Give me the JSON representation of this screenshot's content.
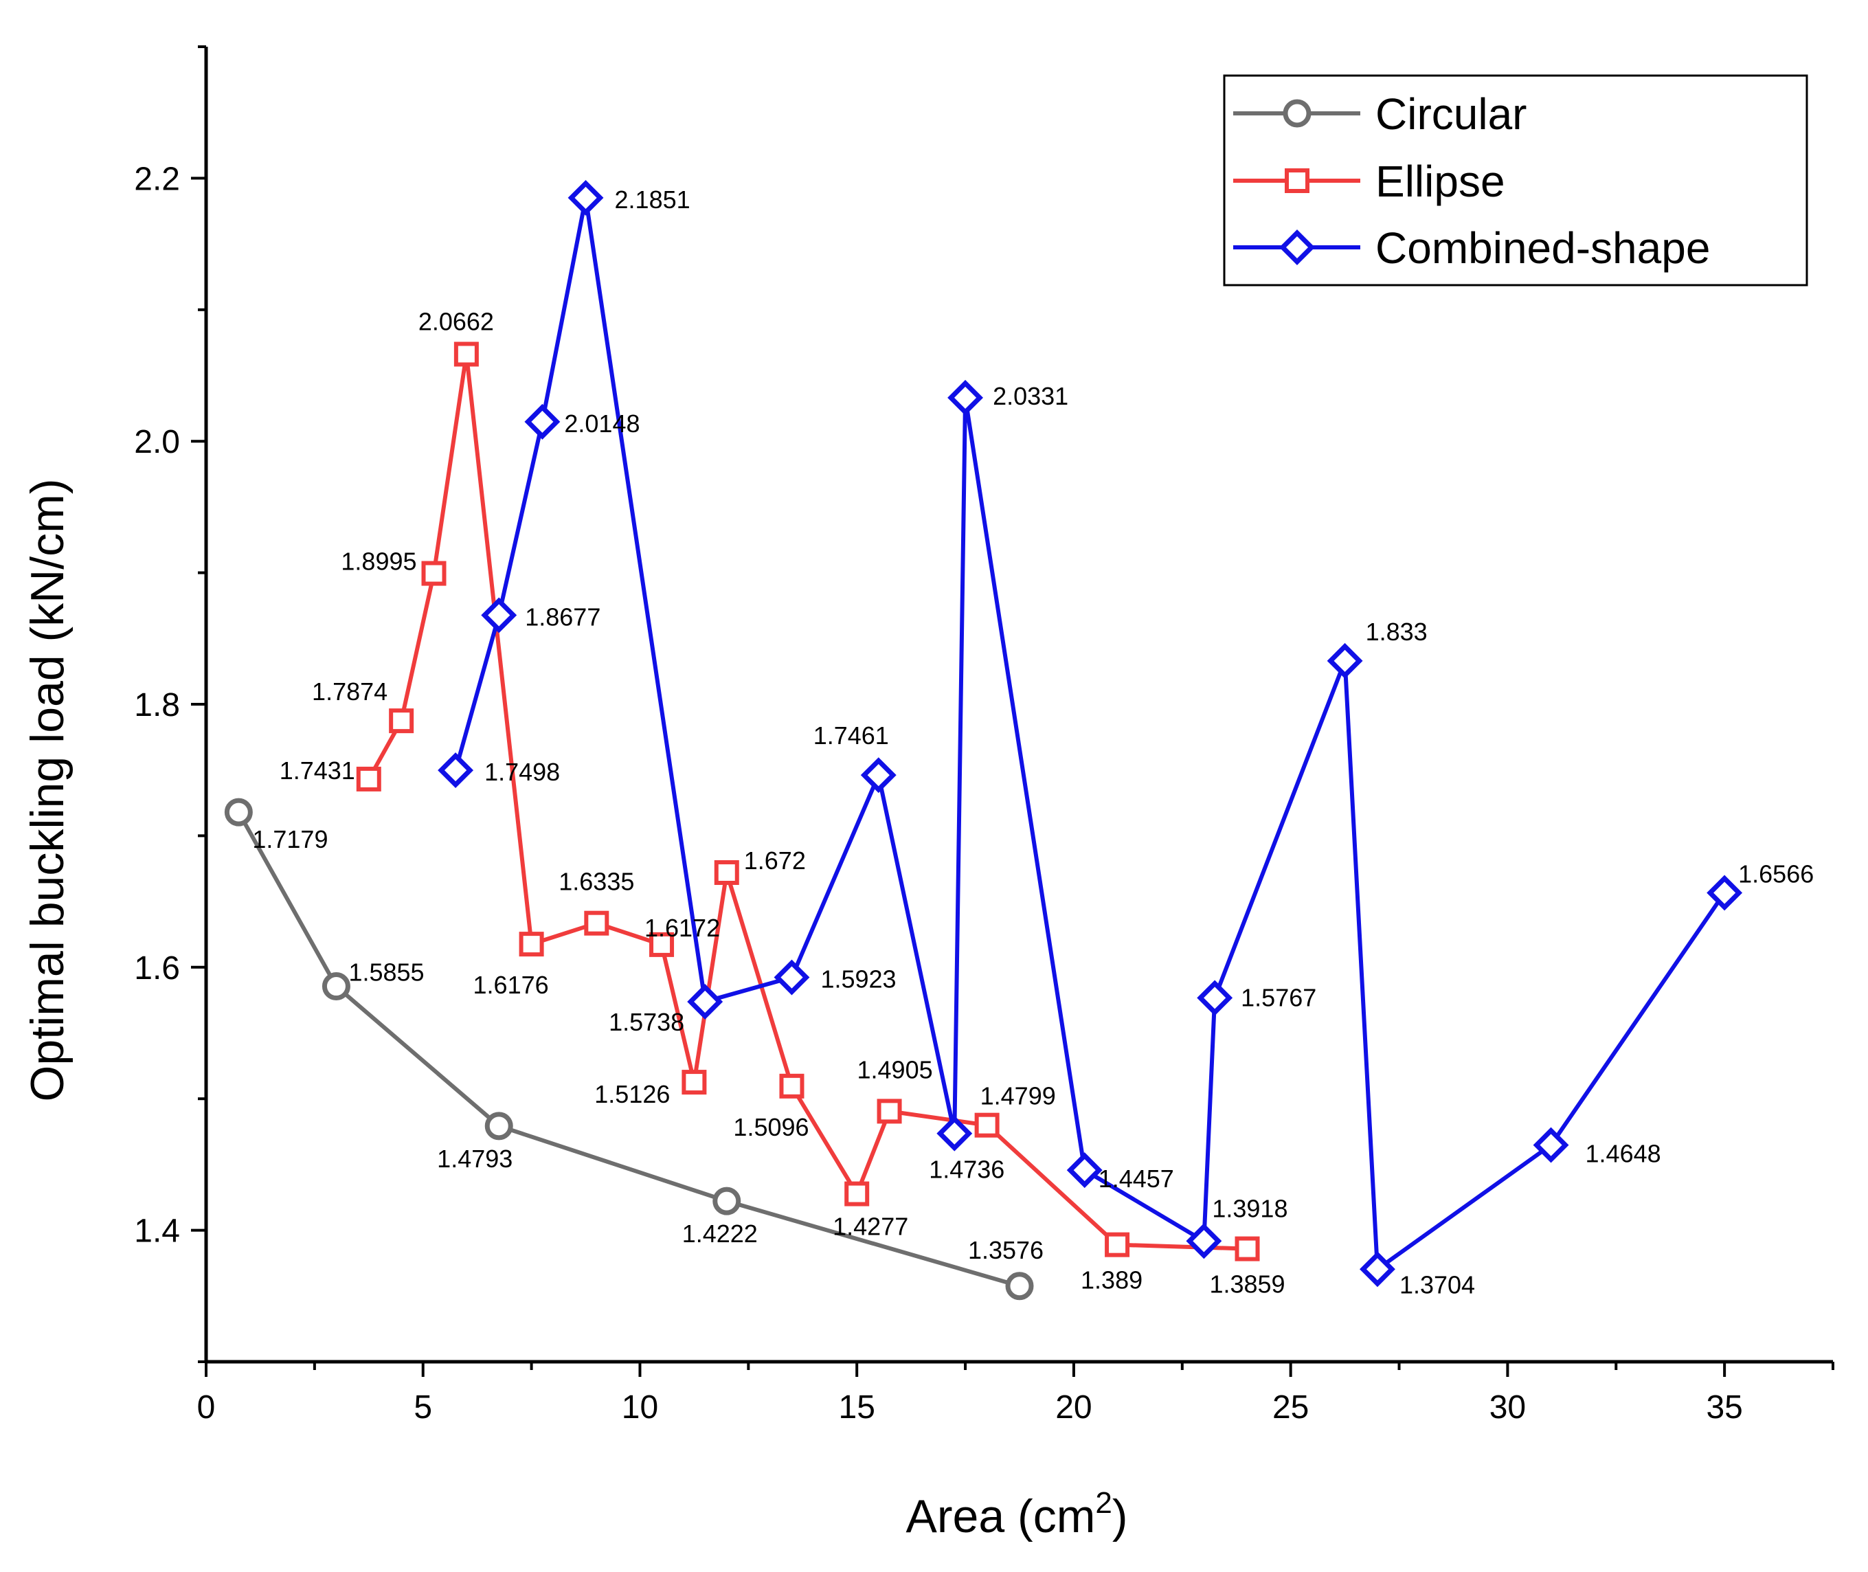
{
  "chart_data": {
    "type": "line",
    "xlabel": "Area (cm",
    "xlabel_sup": "2",
    "xlabel_end": ")",
    "ylabel": "Optimal buckling load (kN/cm)",
    "xlim": [
      0,
      37.5
    ],
    "ylim": [
      1.3,
      2.3
    ],
    "x_ticks": [
      0,
      5,
      10,
      15,
      20,
      25,
      30,
      35
    ],
    "x_tick_labels": [
      "0",
      "5",
      "10",
      "15",
      "20",
      "25",
      "30",
      "35"
    ],
    "y_ticks": [
      1.4,
      1.6,
      1.8,
      2.0,
      2.2
    ],
    "y_tick_labels": [
      "1.4",
      "1.6",
      "1.8",
      "2.0",
      "2.2"
    ],
    "grid": false,
    "legend_position": "top-right",
    "series": [
      {
        "name": "Circular",
        "color": "#6e6e6e",
        "marker": "circle",
        "points": [
          {
            "x": 0.75,
            "y": 1.7179,
            "label": "1.7179"
          },
          {
            "x": 3.0,
            "y": 1.5855,
            "label": "1.5855"
          },
          {
            "x": 6.75,
            "y": 1.4793,
            "label": "1.4793"
          },
          {
            "x": 12.0,
            "y": 1.4222,
            "label": "1.4222"
          },
          {
            "x": 18.75,
            "y": 1.3576,
            "label": "1.3576"
          }
        ]
      },
      {
        "name": "Ellipse",
        "color": "#f03c3c",
        "marker": "square",
        "points": [
          {
            "x": 3.75,
            "y": 1.7431,
            "label": "1.7431"
          },
          {
            "x": 4.5,
            "y": 1.7874,
            "label": "1.7874"
          },
          {
            "x": 5.25,
            "y": 1.8995,
            "label": "1.8995"
          },
          {
            "x": 6.0,
            "y": 2.0662,
            "label": "2.0662"
          },
          {
            "x": 7.5,
            "y": 1.6176,
            "label": "1.6176"
          },
          {
            "x": 9.0,
            "y": 1.6335,
            "label": "1.6335"
          },
          {
            "x": 10.5,
            "y": 1.6172,
            "label": "1.6172"
          },
          {
            "x": 11.25,
            "y": 1.5126,
            "label": "1.5126"
          },
          {
            "x": 12.0,
            "y": 1.672,
            "label": "1.672"
          },
          {
            "x": 13.5,
            "y": 1.5096,
            "label": "1.5096"
          },
          {
            "x": 15.0,
            "y": 1.4277,
            "label": "1.4277"
          },
          {
            "x": 15.75,
            "y": 1.4905,
            "label": "1.4905"
          },
          {
            "x": 18.0,
            "y": 1.4799,
            "label": "1.4799"
          },
          {
            "x": 21.0,
            "y": 1.389,
            "label": "1.389"
          },
          {
            "x": 24.0,
            "y": 1.3859,
            "label": "1.3859"
          }
        ]
      },
      {
        "name": "Combined-shape",
        "color": "#1010e6",
        "marker": "diamond",
        "points": [
          {
            "x": 5.75,
            "y": 1.7498,
            "label": "1.7498"
          },
          {
            "x": 6.75,
            "y": 1.8677,
            "label": "1.8677"
          },
          {
            "x": 7.75,
            "y": 2.0148,
            "label": "2.0148"
          },
          {
            "x": 8.75,
            "y": 2.1851,
            "label": "2.1851"
          },
          {
            "x": 11.5,
            "y": 1.5738,
            "label": "1.5738"
          },
          {
            "x": 13.5,
            "y": 1.5923,
            "label": "1.5923"
          },
          {
            "x": 15.5,
            "y": 1.7461,
            "label": "1.7461"
          },
          {
            "x": 17.25,
            "y": 1.4736,
            "label": "1.4736"
          },
          {
            "x": 17.5,
            "y": 2.0331,
            "label": "2.0331"
          },
          {
            "x": 20.25,
            "y": 1.4457,
            "label": "1.4457"
          },
          {
            "x": 23.0,
            "y": 1.3918,
            "label": "1.3918"
          },
          {
            "x": 23.25,
            "y": 1.5767,
            "label": "1.5767"
          },
          {
            "x": 26.25,
            "y": 1.833,
            "label": "1.833"
          },
          {
            "x": 27.0,
            "y": 1.3704,
            "label": "1.3704"
          },
          {
            "x": 31.0,
            "y": 1.4648,
            "label": "1.4648"
          },
          {
            "x": 35.0,
            "y": 1.6566,
            "label": "1.6566"
          }
        ]
      }
    ]
  }
}
